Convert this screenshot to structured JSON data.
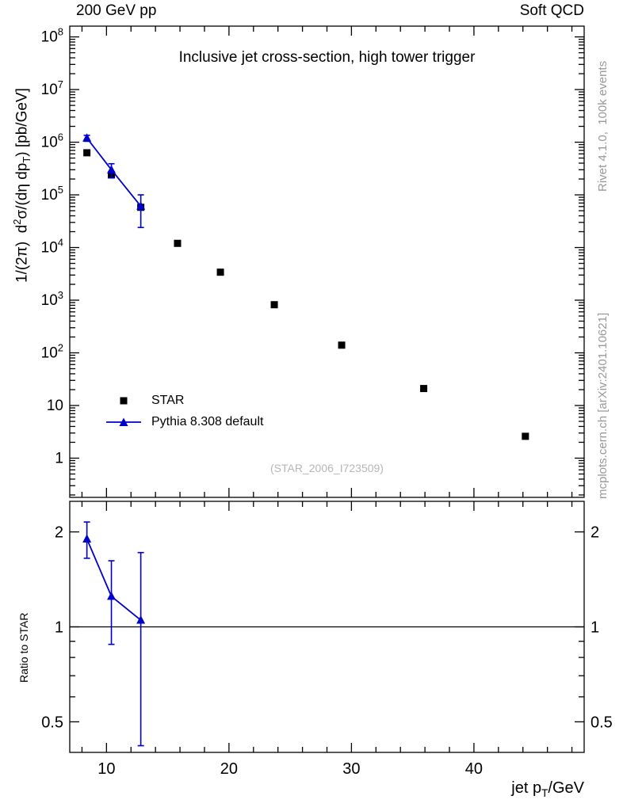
{
  "header": {
    "top_left": "200 GeV pp",
    "top_right": "Soft QCD"
  },
  "right_margin": {
    "generator_label": "Rivet 4.1.0,  100k events",
    "site_label": "mcplots.cern.ch [arXiv:2401.10621]"
  },
  "axis_labels": {
    "main_y": {
      "pre": "1/(2π)  d",
      "sup": "2",
      "mid": "σ/(dη dp",
      "sub": "T",
      "post": ") [pb/GeV]"
    },
    "x": {
      "pre": "jet p",
      "sub": "T",
      "post": "/GeV"
    }
  },
  "chart_data": [
    {
      "type": "scatter",
      "title": "Inclusive jet cross-section, high tower trigger",
      "watermark": "(STAR_2006_I723509)",
      "xlabel": "jet pT/GeV",
      "ylabel": "1/(2π) d²σ/(dη dpT) [pb/GeV]",
      "yscale": "log",
      "grid": false,
      "legend_position": "inside-left-middle",
      "xlim": [
        7,
        49
      ],
      "ylim": [
        0.18,
        160000000.0
      ],
      "x_ticks": [
        10,
        20,
        30,
        40
      ],
      "series": [
        {
          "name": "STAR",
          "marker": "square",
          "color": "#000000",
          "x": [
            8.4,
            10.4,
            12.8,
            15.8,
            19.3,
            23.7,
            29.2,
            35.9,
            44.2
          ],
          "y": [
            630000.0,
            240000.0,
            58000.0,
            12000.0,
            3400.0,
            820.0,
            140.0,
            21.0,
            2.6
          ]
        },
        {
          "name": "Pythia 8.308 default",
          "marker": "triangle",
          "color": "#0000cc",
          "line": true,
          "x": [
            8.4,
            10.4,
            12.8
          ],
          "y": [
            1200000.0,
            300000.0,
            61000.0
          ],
          "y_err_low": [
            1040000.0,
            210000.0,
            24000.0
          ],
          "y_err_high": [
            1350000.0,
            390000.0,
            100000.0
          ]
        }
      ]
    },
    {
      "type": "scatter",
      "title": "",
      "xlabel": "jet pT/GeV",
      "ylabel": "Ratio to STAR",
      "yscale": "log",
      "grid": false,
      "xlim": [
        7,
        49
      ],
      "ylim": [
        0.4,
        2.5
      ],
      "x_ticks": [
        10,
        20,
        30,
        40
      ],
      "y_ticks": [
        0.5,
        1,
        2
      ],
      "reference_line": 1,
      "series": [
        {
          "name": "Pythia 8.308 default / STAR",
          "marker": "triangle",
          "color": "#0000cc",
          "line": true,
          "x": [
            8.4,
            10.4,
            12.8
          ],
          "y": [
            1.9,
            1.25,
            1.05
          ],
          "y_err_low": [
            1.65,
            0.88,
            0.42
          ],
          "y_err_high": [
            2.15,
            1.62,
            1.72
          ]
        }
      ]
    }
  ]
}
